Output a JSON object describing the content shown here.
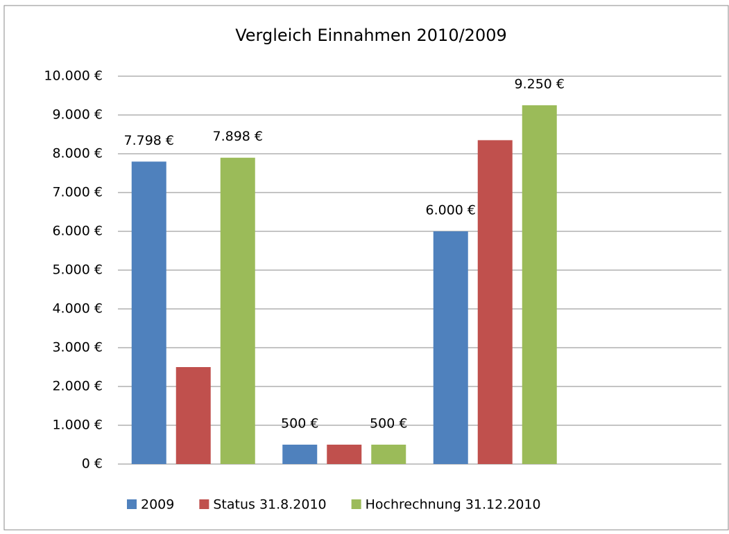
{
  "chart_data": {
    "type": "bar",
    "title": "Vergleich Einnahmen 2010/2009",
    "categories": [
      null,
      null,
      null,
      null
    ],
    "series": [
      {
        "name": "2009",
        "color": "#4f81bd",
        "values": [
          7798,
          500,
          6000,
          null
        ],
        "value_labels": [
          "7.798 €",
          "500 €",
          "6.000 €",
          null
        ]
      },
      {
        "name": "Status 31.8.2010",
        "color": "#c0504d",
        "values": [
          2500,
          500,
          8350,
          null
        ],
        "value_labels": [
          null,
          null,
          null,
          null
        ]
      },
      {
        "name": "Hochrechnung 31.12.2010",
        "color": "#9bbb59",
        "values": [
          7898,
          500,
          9250,
          null
        ],
        "value_labels": [
          "7.898 €",
          "500 €",
          "9.250 €",
          null
        ]
      }
    ],
    "ylim": [
      0,
      10000
    ],
    "yticks": [
      {
        "value": 0,
        "label": "0 €"
      },
      {
        "value": 1000,
        "label": "1.000 €"
      },
      {
        "value": 2000,
        "label": "2.000 €"
      },
      {
        "value": 3000,
        "label": "3.000 €"
      },
      {
        "value": 4000,
        "label": "4.000 €"
      },
      {
        "value": 5000,
        "label": "5.000 €"
      },
      {
        "value": 6000,
        "label": "6.000 €"
      },
      {
        "value": 7000,
        "label": "7.000 €"
      },
      {
        "value": 8000,
        "label": "8.000 €"
      },
      {
        "value": 9000,
        "label": "9.000 €"
      },
      {
        "value": 10000,
        "label": "10.000 €"
      }
    ],
    "grid": true,
    "legend": "bottom"
  }
}
